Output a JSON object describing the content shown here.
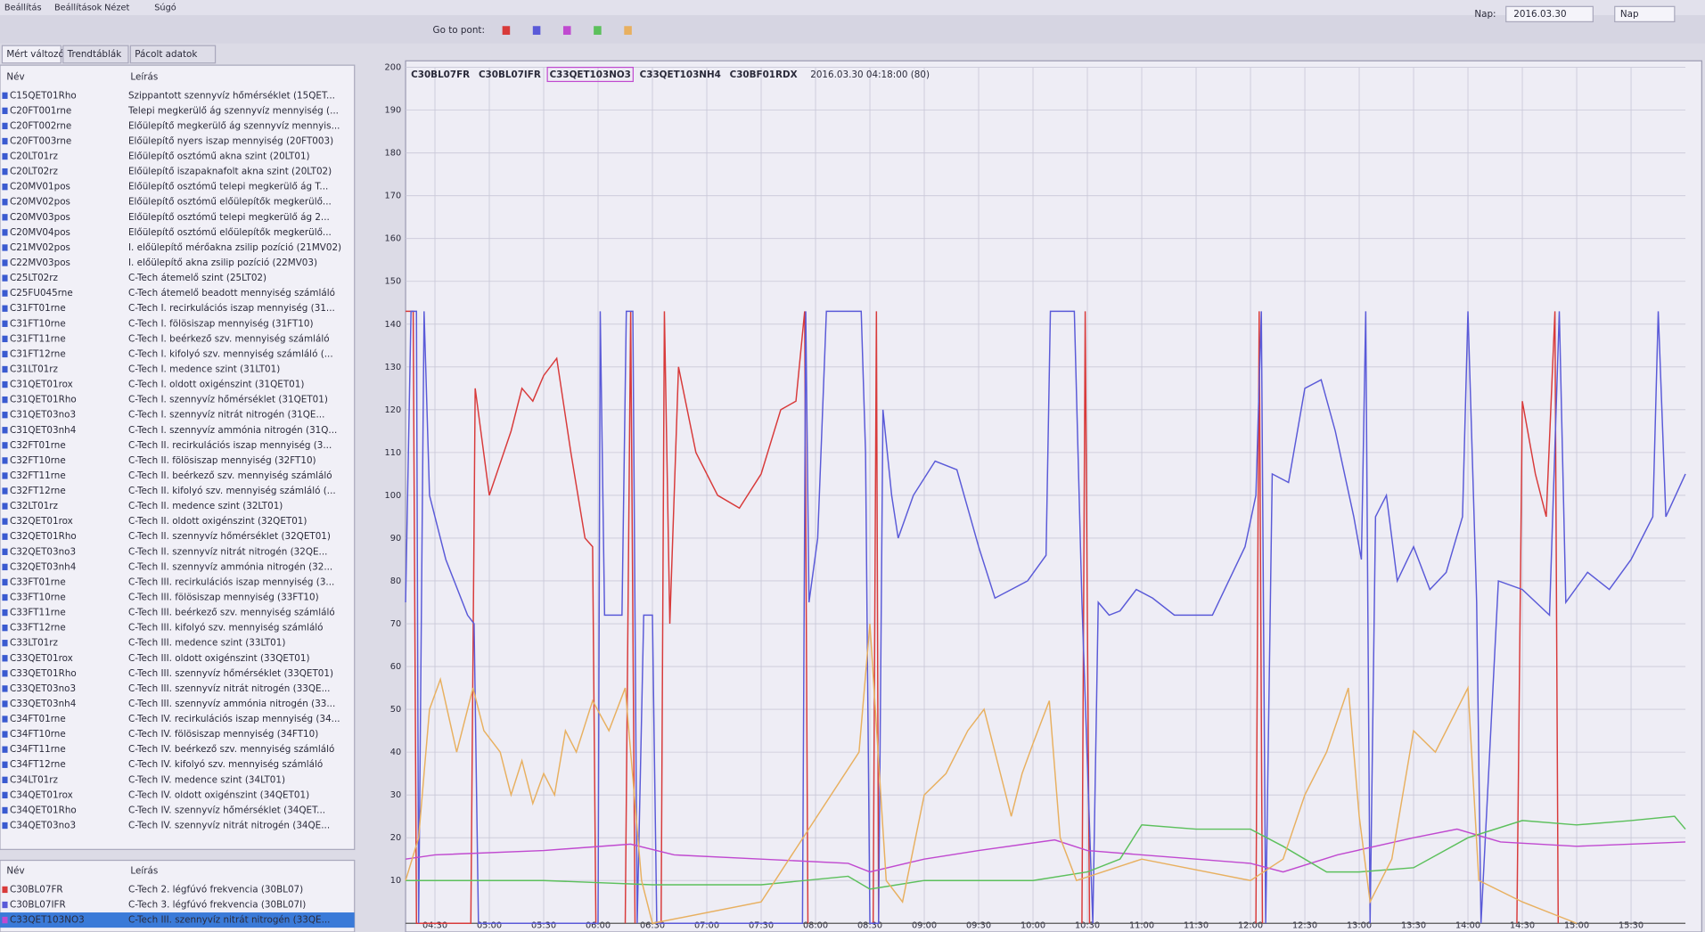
{
  "menu": [
    "Beállítás",
    "Beállítások",
    "Nézet",
    "Súgó"
  ],
  "toolbar": {
    "go_to_label": "Go to pont:",
    "date_label": "Nap:",
    "date": "2016.03.30",
    "period": "Nap"
  },
  "tabs": [
    "Mért változók",
    "Trendtáblák",
    "Pácolt adatok"
  ],
  "tag_list": {
    "headers": [
      "Név",
      "Leírás"
    ],
    "rows": [
      [
        "C15QET01Rho",
        "Szippantott szennyvíz hőmérséklet (15QET..."
      ],
      [
        "C20FT001rne",
        "Telepi megkerülő ág szennyvíz mennyiség (..."
      ],
      [
        "C20FT002rne",
        "Előülepítő megkerülő ág szennyvíz mennyis..."
      ],
      [
        "C20FT003rne",
        "Előülepítő nyers iszap mennyiség (20FT003)"
      ],
      [
        "C20LT01rz",
        "Előülepítő osztómű akna szint (20LT01)"
      ],
      [
        "C20LT02rz",
        "Előülepítő iszapaknafolt akna szint (20LT02)"
      ],
      [
        "C20MV01pos",
        "Előülepítő osztómű telepi megkerülő ág T..."
      ],
      [
        "C20MV02pos",
        "Előülepítő osztómű előülepítők megkerülő..."
      ],
      [
        "C20MV03pos",
        "Előülepítő osztómű telepi megkerülő ág 2..."
      ],
      [
        "C20MV04pos",
        "Előülepítő osztómű előülepítők megkerülő..."
      ],
      [
        "C21MV02pos",
        "I. előülepítő mérőakna zsilip pozíció (21MV02)"
      ],
      [
        "C22MV03pos",
        "I. előülepítő akna zsilip pozíció (22MV03)"
      ],
      [
        "C25LT02rz",
        "C-Tech átemelő szint (25LT02)"
      ],
      [
        "C25FU045rne",
        "C-Tech átemelő beadott mennyiség számláló"
      ],
      [
        "C31FT01rne",
        "C-Tech I. recirkulációs iszap mennyiség (31..."
      ],
      [
        "C31FT10rne",
        "C-Tech I. fölösiszap mennyiség (31FT10)"
      ],
      [
        "C31FT11rne",
        "C-Tech I. beérkező szv. mennyiség számláló"
      ],
      [
        "C31FT12rne",
        "C-Tech I. kifolyó szv. mennyiség számláló (..."
      ],
      [
        "C31LT01rz",
        "C-Tech I. medence szint (31LT01)"
      ],
      [
        "C31QET01rox",
        "C-Tech I. oldott oxigénszint (31QET01)"
      ],
      [
        "C31QET01Rho",
        "C-Tech I. szennyvíz hőmérséklet (31QET01)"
      ],
      [
        "C31QET03no3",
        "C-Tech I. szennyvíz nitrát nitrogén (31QE..."
      ],
      [
        "C31QET03nh4",
        "C-Tech I. szennyvíz ammónia nitrogén (31Q..."
      ],
      [
        "C32FT01rne",
        "C-Tech II. recirkulációs iszap mennyiség (3..."
      ],
      [
        "C32FT10rne",
        "C-Tech II. fölösiszap mennyiség (32FT10)"
      ],
      [
        "C32FT11rne",
        "C-Tech II. beérkező szv. mennyiség számláló"
      ],
      [
        "C32FT12rne",
        "C-Tech II. kifolyó szv. mennyiség számláló (..."
      ],
      [
        "C32LT01rz",
        "C-Tech II. medence szint (32LT01)"
      ],
      [
        "C32QET01rox",
        "C-Tech II. oldott oxigénszint (32QET01)"
      ],
      [
        "C32QET01Rho",
        "C-Tech II. szennyvíz hőmérséklet (32QET01)"
      ],
      [
        "C32QET03no3",
        "C-Tech II. szennyvíz nitrát nitrogén (32QE..."
      ],
      [
        "C32QET03nh4",
        "C-Tech II. szennyvíz ammónia nitrogén (32..."
      ],
      [
        "C33FT01rne",
        "C-Tech III. recirkulációs iszap mennyiség (3..."
      ],
      [
        "C33FT10rne",
        "C-Tech III. fölösiszap mennyiség (33FT10)"
      ],
      [
        "C33FT11rne",
        "C-Tech III. beérkező szv. mennyiség számláló"
      ],
      [
        "C33FT12rne",
        "C-Tech III. kifolyó szv. mennyiség számláló"
      ],
      [
        "C33LT01rz",
        "C-Tech III. medence szint (33LT01)"
      ],
      [
        "C33QET01rox",
        "C-Tech III. oldott oxigénszint (33QET01)"
      ],
      [
        "C33QET01Rho",
        "C-Tech III. szennyvíz hőmérséklet (33QET01)"
      ],
      [
        "C33QET03no3",
        "C-Tech III. szennyvíz nitrát nitrogén (33QE..."
      ],
      [
        "C33QET03nh4",
        "C-Tech III. szennyvíz ammónia nitrogén (33..."
      ],
      [
        "C34FT01rne",
        "C-Tech IV. recirkulációs iszap mennyiség (34..."
      ],
      [
        "C34FT10rne",
        "C-Tech IV. fölösiszap mennyiség (34FT10)"
      ],
      [
        "C34FT11rne",
        "C-Tech IV. beérkező szv. mennyiség számláló"
      ],
      [
        "C34FT12rne",
        "C-Tech IV. kifolyó szv. mennyiség számláló"
      ],
      [
        "C34LT01rz",
        "C-Tech IV. medence szint (34LT01)"
      ],
      [
        "C34QET01rox",
        "C-Tech IV. oldott oxigénszint (34QET01)"
      ],
      [
        "C34QET01Rho",
        "C-Tech IV. szennyvíz hőmérséklet (34QET..."
      ],
      [
        "C34QET03no3",
        "C-Tech IV. szennyvíz nitrát nitrogén (34QE..."
      ]
    ]
  },
  "selected_list": {
    "headers": [
      "Név",
      "Leírás"
    ],
    "rows": [
      [
        "C30BL07FR",
        "C-Tech 2. légfúvó frekvencia (30BL07)"
      ],
      [
        "C30BL07IFR",
        "C-Tech 3. légfúvó frekvencia (30BL07I)"
      ],
      [
        "C33QET103NO3",
        "C-Tech III. szennyvíz nitrát nitrogén (33QE..."
      ]
    ]
  },
  "chart_data": {
    "type": "line",
    "timestamp": "2016.03.30 04:18:00 (80)",
    "xlim": [
      4.23,
      16.0
    ],
    "xticks": [
      {
        "value": 4.5,
        "label": "04:30"
      },
      {
        "value": 5,
        "label": "05:00"
      },
      {
        "value": 5.5,
        "label": "05:30"
      },
      {
        "value": 6,
        "label": "06:00"
      },
      {
        "value": 6.5,
        "label": "06:30"
      },
      {
        "value": 7,
        "label": "07:00"
      },
      {
        "value": 7.5,
        "label": "07:30"
      },
      {
        "value": 8,
        "label": "08:00"
      },
      {
        "value": 8.5,
        "label": "08:30"
      },
      {
        "value": 9,
        "label": "09:00"
      },
      {
        "value": 9.5,
        "label": "09:30"
      },
      {
        "value": 10,
        "label": "10:00"
      },
      {
        "value": 10.5,
        "label": "10:30"
      },
      {
        "value": 11,
        "label": "11:00"
      },
      {
        "value": 11.5,
        "label": "11:30"
      },
      {
        "value": 12,
        "label": "12:00"
      },
      {
        "value": 12.5,
        "label": "12:30"
      },
      {
        "value": 13,
        "label": "13:00"
      },
      {
        "value": 13.5,
        "label": "13:30"
      },
      {
        "value": 14,
        "label": "14:00"
      },
      {
        "value": 14.5,
        "label": "14:30"
      },
      {
        "value": 15,
        "label": "15:00"
      },
      {
        "value": 15.5,
        "label": "15:30"
      }
    ],
    "ylim": [
      0,
      200
    ],
    "yticks": [
      10,
      20,
      30,
      40,
      50,
      60,
      70,
      80,
      90,
      100,
      110,
      120,
      130,
      140,
      150,
      160,
      170,
      180,
      190,
      200
    ],
    "grid": true,
    "selected_series": 2,
    "series": [
      {
        "name": "C30BL07FR",
        "color": "#d83a3a",
        "x": [
          4.23,
          4.3,
          4.33,
          4.83,
          4.87,
          5.0,
          5.2,
          5.3,
          5.4,
          5.5,
          5.62,
          5.75,
          5.88,
          5.95,
          5.98,
          6.1,
          6.25,
          6.3,
          6.34,
          6.45,
          6.58,
          6.61,
          6.66,
          6.74,
          6.9,
          7.1,
          7.3,
          7.5,
          7.68,
          7.82,
          7.9,
          7.93,
          8.2,
          8.53,
          8.56,
          8.58,
          9.5,
          10.45,
          10.48,
          10.52,
          11.5,
          12.05,
          12.08,
          12.11,
          13.5,
          14.45,
          14.5,
          14.62,
          14.72,
          14.8,
          14.83
        ],
        "values": [
          143,
          143,
          0,
          0,
          125,
          100,
          115,
          125,
          122,
          128,
          132,
          110,
          90,
          88,
          0,
          null,
          0,
          143,
          0,
          null,
          0,
          143,
          70,
          130,
          110,
          100,
          97,
          105,
          120,
          122,
          143,
          0,
          null,
          0,
          143,
          0,
          null,
          0,
          143,
          0,
          null,
          0,
          143,
          0,
          null,
          0,
          122,
          105,
          95,
          143,
          0
        ]
      },
      {
        "name": "C30BL07IFR",
        "color": "#5a5ad8",
        "x": [
          4.23,
          4.28,
          4.33,
          4.35,
          4.4,
          4.45,
          4.6,
          4.8,
          4.86,
          4.9,
          6.0,
          6.02,
          6.06,
          6.22,
          6.26,
          6.32,
          6.36,
          6.42,
          6.5,
          6.54,
          7.88,
          7.91,
          7.94,
          8.02,
          8.1,
          8.42,
          8.46,
          8.5,
          8.58,
          8.62,
          8.7,
          8.76,
          8.9,
          9.1,
          9.3,
          9.5,
          9.65,
          9.8,
          9.95,
          10.12,
          10.16,
          10.38,
          10.45,
          10.55,
          10.6,
          10.7,
          10.8,
          10.95,
          11.1,
          11.3,
          11.65,
          11.8,
          11.95,
          12.05,
          12.1,
          12.14,
          12.2,
          12.35,
          12.5,
          12.65,
          12.78,
          12.95,
          13.02,
          13.06,
          13.1,
          13.15,
          13.25,
          13.35,
          13.5,
          13.65,
          13.8,
          13.95,
          14.0,
          14.08,
          14.12,
          14.28,
          14.5,
          14.75,
          14.84,
          14.9,
          15.1,
          15.3,
          15.5,
          15.7,
          15.75,
          15.82,
          16.0
        ],
        "values": [
          75,
          143,
          143,
          0,
          143,
          100,
          85,
          72,
          70,
          0,
          0,
          143,
          72,
          72,
          143,
          143,
          0,
          72,
          72,
          0,
          0,
          143,
          75,
          90,
          143,
          143,
          110,
          0,
          0,
          120,
          100,
          90,
          100,
          108,
          106,
          88,
          76,
          78,
          80,
          86,
          143,
          143,
          75,
          0,
          75,
          72,
          73,
          78,
          76,
          72,
          72,
          80,
          88,
          100,
          143,
          0,
          105,
          103,
          125,
          127,
          115,
          95,
          85,
          143,
          0,
          95,
          100,
          80,
          88,
          78,
          82,
          95,
          143,
          75,
          0,
          80,
          78,
          72,
          143,
          75,
          82,
          78,
          85,
          95,
          143,
          95,
          105
        ]
      },
      {
        "name": "C33QET103NO3",
        "color": "#c04ad0",
        "x": [
          4.23,
          4.5,
          5.5,
          6.3,
          6.7,
          7.5,
          8.3,
          8.5,
          9.0,
          9.5,
          10.2,
          10.5,
          11.0,
          11.5,
          12.0,
          12.3,
          12.8,
          13.5,
          13.9,
          14.3,
          15.0,
          16.0
        ],
        "values": [
          15,
          16,
          17,
          18.5,
          16,
          15,
          14,
          12,
          15,
          17,
          19.5,
          17,
          16,
          15,
          14,
          12,
          16,
          20,
          22,
          19,
          18,
          19
        ]
      },
      {
        "name": "C33QET103NH4",
        "color": "#5cc05c",
        "x": [
          4.23,
          5.5,
          6.5,
          7.5,
          8.3,
          8.5,
          9.0,
          10.0,
          10.5,
          10.8,
          11.0,
          11.5,
          12.0,
          12.3,
          12.7,
          13.0,
          13.5,
          14.0,
          14.5,
          15.0,
          15.5,
          15.9,
          16.0
        ],
        "values": [
          10,
          10,
          9,
          9,
          11,
          8,
          10,
          10,
          12,
          15,
          23,
          22,
          22,
          18,
          12,
          12,
          13,
          20,
          24,
          23,
          24,
          25,
          22
        ]
      },
      {
        "name": "C30BF01RDX",
        "color": "#e8b060",
        "x": [
          4.23,
          4.35,
          4.45,
          4.55,
          4.7,
          4.85,
          4.95,
          5.1,
          5.2,
          5.3,
          5.4,
          5.5,
          5.6,
          5.7,
          5.8,
          5.95,
          6.1,
          6.25,
          6.4,
          6.5,
          7.5,
          8.4,
          8.5,
          8.65,
          8.8,
          9.0,
          9.2,
          9.4,
          9.55,
          9.7,
          9.8,
          9.9,
          10.0,
          10.15,
          10.25,
          10.4,
          11.0,
          12.0,
          12.3,
          12.5,
          12.7,
          12.9,
          13.0,
          13.1,
          13.3,
          13.5,
          13.7,
          13.9,
          14.0,
          14.1,
          14.5,
          15.0
        ],
        "values": [
          10,
          20,
          50,
          57,
          40,
          55,
          45,
          40,
          30,
          38,
          28,
          35,
          30,
          45,
          40,
          52,
          45,
          55,
          10,
          0,
          5,
          40,
          70,
          10,
          5,
          30,
          35,
          45,
          50,
          35,
          25,
          35,
          42,
          52,
          20,
          10,
          15,
          10,
          15,
          30,
          40,
          55,
          25,
          5,
          15,
          45,
          40,
          50,
          55,
          10,
          5,
          0
        ]
      }
    ]
  }
}
